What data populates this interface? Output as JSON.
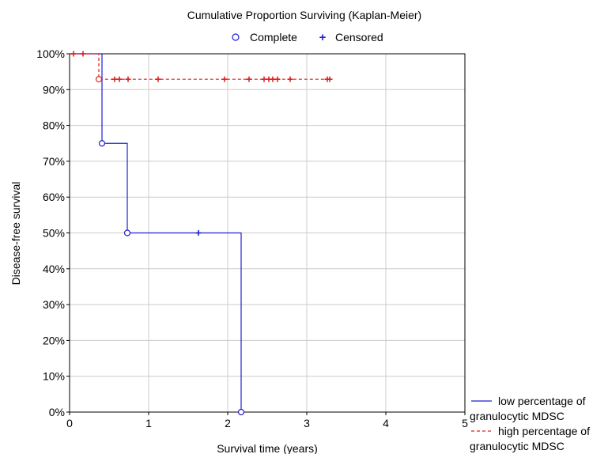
{
  "chart_data": {
    "type": "line",
    "title": "Cumulative Proportion Surviving (Kaplan-Meier)",
    "xlabel": "Survival time (years)",
    "ylabel": "Disease-free survival",
    "xlim": [
      0,
      5
    ],
    "ylim": [
      0,
      100
    ],
    "x_ticks": [
      "0",
      "1",
      "2",
      "3",
      "4",
      "5"
    ],
    "y_ticks": [
      "0%",
      "10%",
      "20%",
      "30%",
      "40%",
      "50%",
      "60%",
      "70%",
      "80%",
      "90%",
      "100%"
    ],
    "grid": true,
    "top_legend": {
      "complete_label": "Complete",
      "censored_label": "Censored",
      "complete_symbol": "○",
      "censored_symbol": "+"
    },
    "series": [
      {
        "name_lines": [
          "low percentage of",
          "granulocytic MDSC"
        ],
        "color": "#1f1fd0",
        "line_style": "solid",
        "steps": [
          [
            0,
            100
          ],
          [
            0.41,
            100
          ],
          [
            0.41,
            75
          ],
          [
            0.73,
            75
          ],
          [
            0.73,
            50
          ],
          [
            2.17,
            50
          ],
          [
            2.17,
            0
          ]
        ],
        "complete_events": [
          [
            0.41,
            75
          ],
          [
            0.73,
            50
          ],
          [
            2.17,
            0
          ]
        ],
        "censored_events": [
          [
            1.63,
            50
          ]
        ]
      },
      {
        "name_lines": [
          "high percentage of",
          "granulocytic MDSC"
        ],
        "color": "#e02020",
        "line_style": "dashed",
        "steps": [
          [
            0,
            100
          ],
          [
            0.37,
            100
          ],
          [
            0.37,
            92.9
          ],
          [
            3.31,
            92.9
          ]
        ],
        "complete_events": [
          [
            0.37,
            92.9
          ]
        ],
        "censored_events": [
          [
            0.05,
            100
          ],
          [
            0.17,
            100
          ],
          [
            0.57,
            92.9
          ],
          [
            0.63,
            92.9
          ],
          [
            0.74,
            92.9
          ],
          [
            1.12,
            92.9
          ],
          [
            1.96,
            92.9
          ],
          [
            2.27,
            92.9
          ],
          [
            2.46,
            92.9
          ],
          [
            2.52,
            92.9
          ],
          [
            2.57,
            92.9
          ],
          [
            2.63,
            92.9
          ],
          [
            2.79,
            92.9
          ],
          [
            3.26,
            92.9
          ],
          [
            3.29,
            92.9
          ]
        ]
      }
    ]
  }
}
